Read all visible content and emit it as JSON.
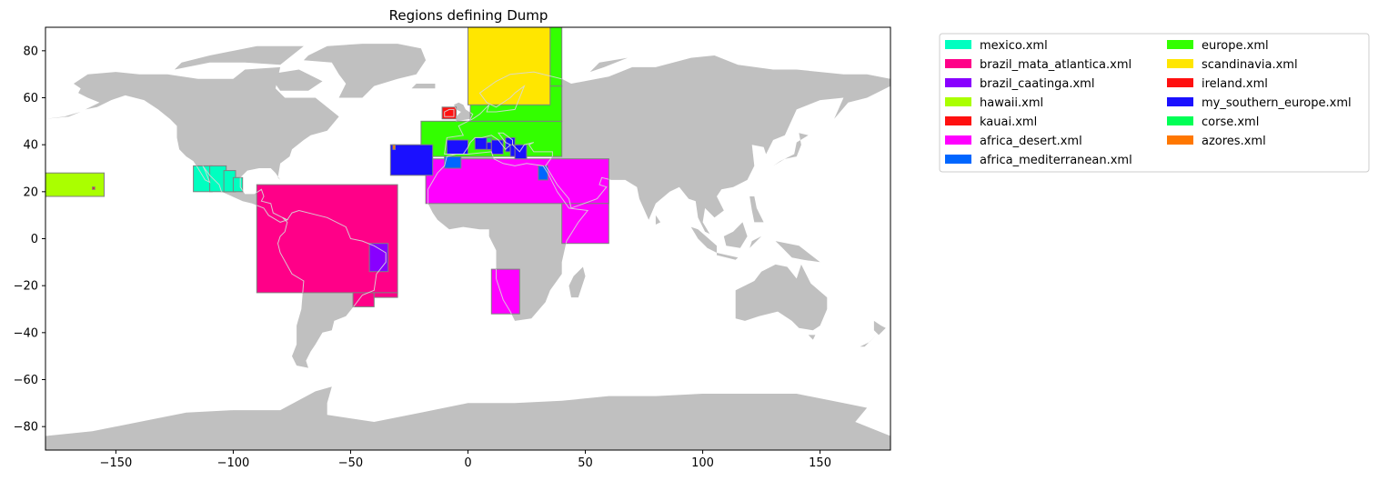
{
  "chart_data": {
    "type": "map",
    "title": "Regions defining Dump",
    "xlim": [
      -180,
      180
    ],
    "ylim": [
      -90,
      90
    ],
    "x_ticks": [
      -150,
      -100,
      -50,
      0,
      50,
      100,
      150
    ],
    "y_ticks": [
      -80,
      -60,
      -40,
      -20,
      0,
      20,
      40,
      60,
      80
    ],
    "land_color": "#c0c0c0",
    "legend_position": "outside-right",
    "legend_columns": 2,
    "series": [
      {
        "name": "mexico.xml",
        "color": "#00ffc0",
        "boxes": [
          [
            -117,
            -109,
            20,
            31
          ],
          [
            -110,
            -103,
            20,
            31
          ],
          [
            -104,
            -99,
            20,
            29
          ],
          [
            -100,
            -96,
            20,
            26
          ]
        ]
      },
      {
        "name": "brazil_mata_atlantica.xml",
        "color": "#ff0088",
        "boxes": [
          [
            -90,
            -30,
            -23,
            23
          ],
          [
            -49,
            -40,
            -29,
            -23
          ],
          [
            -40,
            -30,
            -25,
            -23
          ]
        ]
      },
      {
        "name": "brazil_caatinga.xml",
        "color": "#8800ff",
        "boxes": [
          [
            -42,
            -34,
            -14,
            -2
          ]
        ]
      },
      {
        "name": "hawaii.xml",
        "color": "#aaff00",
        "boxes": [
          [
            -180,
            -155,
            18,
            28
          ]
        ]
      },
      {
        "name": "kauai.xml",
        "color": "#ff1010",
        "boxes": [
          [
            -160,
            -159,
            21,
            22
          ]
        ]
      },
      {
        "name": "africa_desert.xml",
        "color": "#ff00ff",
        "boxes": [
          [
            -18,
            60,
            15,
            34
          ],
          [
            40,
            60,
            -2,
            15
          ],
          [
            10,
            22,
            -32,
            -13
          ]
        ]
      },
      {
        "name": "africa_mediterranean.xml",
        "color": "#0066ff",
        "boxes": [
          [
            -10,
            -3,
            30,
            35
          ],
          [
            30,
            34,
            25,
            31
          ]
        ]
      },
      {
        "name": "europe.xml",
        "color": "#33ff00",
        "boxes": [
          [
            -20,
            40,
            35,
            50
          ],
          [
            1,
            40,
            50,
            65
          ],
          [
            35,
            40,
            65,
            90
          ]
        ]
      },
      {
        "name": "scandinavia.xml",
        "color": "#ffe600",
        "boxes": [
          [
            0,
            35,
            57,
            90
          ]
        ]
      },
      {
        "name": "ireland.xml",
        "color": "#ff1010",
        "boxes": [
          [
            -11,
            -5,
            51,
            56
          ]
        ]
      },
      {
        "name": "my_southern_europe.xml",
        "color": "#1a10ff",
        "boxes": [
          [
            -33,
            -15,
            27,
            40
          ],
          [
            -9,
            0,
            36,
            42
          ],
          [
            3,
            9,
            38,
            43
          ],
          [
            8,
            10,
            38,
            41
          ],
          [
            10,
            15,
            36,
            42
          ],
          [
            16,
            20,
            37,
            43
          ],
          [
            18,
            22,
            35,
            40
          ],
          [
            20,
            25,
            34,
            40
          ]
        ]
      },
      {
        "name": "corse.xml",
        "color": "#00ff55",
        "boxes": [
          [
            8,
            10,
            41,
            43
          ]
        ]
      },
      {
        "name": "azores.xml",
        "color": "#ff7700",
        "boxes": [
          [
            -32,
            -31,
            38,
            40
          ]
        ]
      }
    ]
  }
}
